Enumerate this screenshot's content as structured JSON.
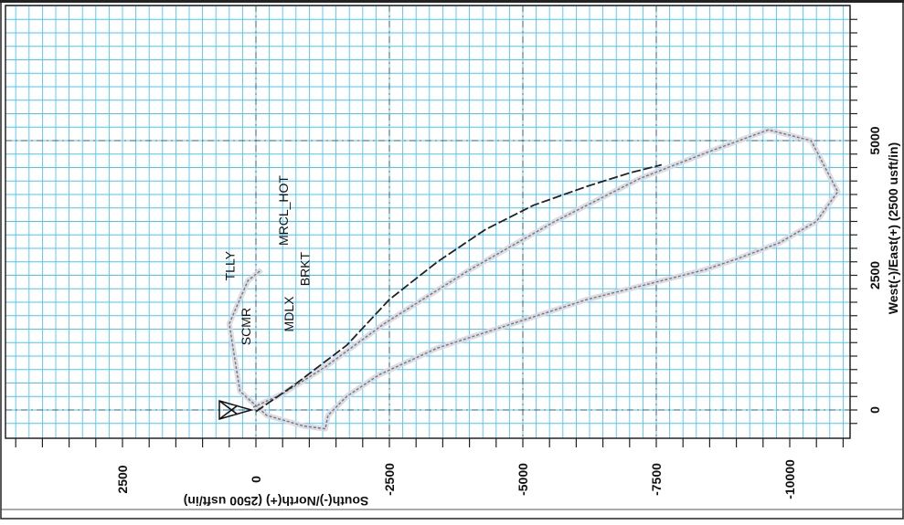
{
  "chart_data": {
    "type": "line",
    "title": "",
    "xlabel": "South(-)/North(+) (2500 usft/in)",
    "ylabel": "West(-)/East(+) (2500 usft/in)",
    "x_range": [
      4700,
      -11000
    ],
    "y_range": [
      -450,
      7300
    ],
    "x_ticks": [
      2500,
      0,
      -2500,
      -5000,
      -7500,
      -10000
    ],
    "x_tick_labels": [
      "2500",
      "0",
      "-2500",
      "-5000",
      "-7500",
      "-10000"
    ],
    "y_ticks": [
      0,
      2500,
      5000
    ],
    "y_tick_labels": [
      "0",
      "2500",
      "5000"
    ],
    "grid": true,
    "grid_color": "#4fc3f7",
    "series": [
      {
        "color": "#777777",
        "x": [
          50,
          -500,
          -1300,
          -2400,
          -4000,
          -5600,
          -7200,
          -8500,
          -9600,
          -10400,
          -10900,
          -10500,
          -9800,
          -9000,
          -8400,
          -7600,
          -6200,
          -4800,
          -3400,
          -2300,
          -1700,
          -1350,
          -1300,
          -900,
          -200,
          300,
          500,
          150,
          -100
        ],
        "y": [
          50,
          300,
          800,
          1600,
          2600,
          3500,
          4300,
          4800,
          5200,
          5000,
          4050,
          3500,
          3100,
          2800,
          2600,
          2400,
          2050,
          1600,
          1150,
          650,
          250,
          -100,
          -350,
          -300,
          -100,
          350,
          1600,
          2400,
          2600
        ]
      },
      {
        "color": "#222222",
        "x": [
          0,
          -700,
          -1700,
          -2500,
          -3400,
          -4300,
          -5200,
          -6200,
          -7000,
          -7600
        ],
        "y": [
          -30,
          450,
          1200,
          2050,
          2750,
          3350,
          3800,
          4150,
          4400,
          4550
        ]
      }
    ],
    "markers": [
      {
        "name": "SCMR",
        "x": 100,
        "y": 1200
      },
      {
        "name": "TLLY",
        "x": 400,
        "y": 2400
      },
      {
        "name": "MDLX",
        "x": -700,
        "y": 1450
      },
      {
        "name": "MRCL_HOT",
        "x": -600,
        "y": 3050
      },
      {
        "name": "BRKT",
        "x": -1000,
        "y": 2300
      }
    ],
    "annotations": [
      "SCMR",
      "TLLY",
      "MDLX",
      "MRCL_HOT",
      "BRKT"
    ]
  }
}
